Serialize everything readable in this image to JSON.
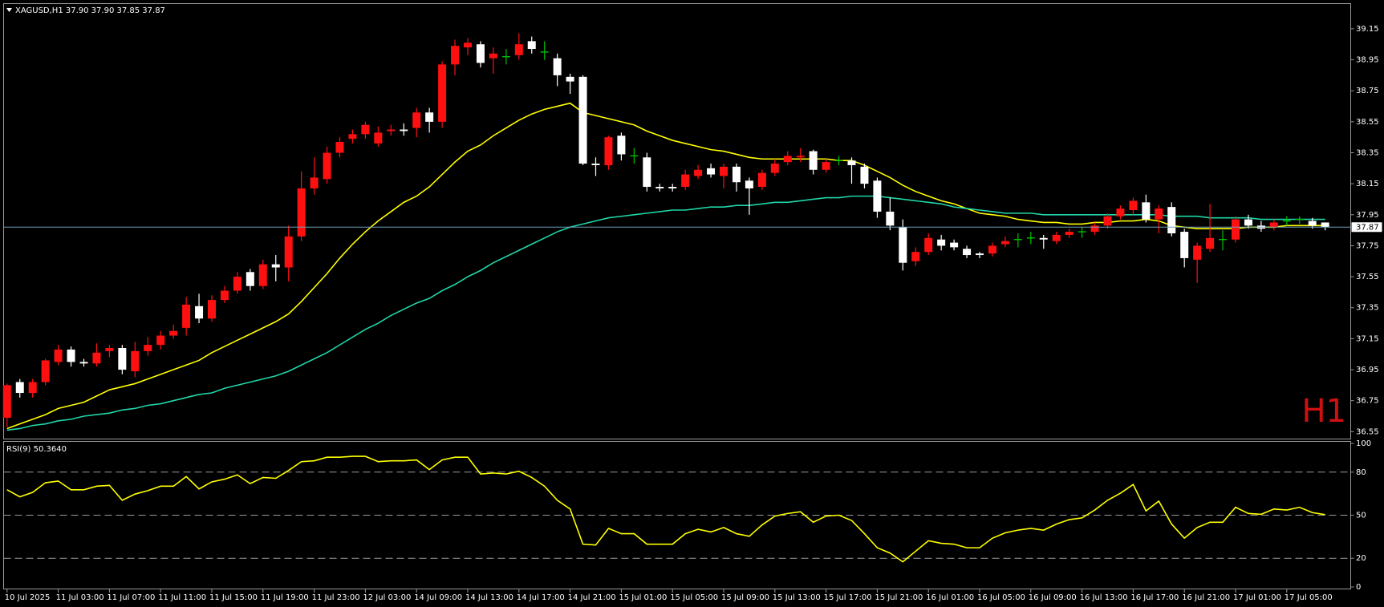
{
  "chart_data": [
    {
      "type": "candlestick",
      "title": "XAGUSD,H1  37.90 37.90 37.85 37.87",
      "watermark": "H1",
      "categories": [
        "10 Jul 2025",
        null,
        null,
        null,
        "11 Jul 03:00",
        null,
        null,
        null,
        "11 Jul 07:00",
        null,
        null,
        null,
        "11 Jul 11:00",
        null,
        null,
        null,
        "11 Jul 15:00",
        null,
        null,
        null,
        "11 Jul 19:00",
        null,
        null,
        null,
        "11 Jul 23:00",
        null,
        null,
        null,
        "12 Jul 03:00",
        null,
        null,
        null,
        "14 Jul 09:00",
        null,
        null,
        null,
        "14 Jul 13:00",
        null,
        null,
        null,
        "14 Jul 17:00",
        null,
        null,
        null,
        "14 Jul 21:00",
        null,
        null,
        null,
        "15 Jul 01:00",
        null,
        null,
        null,
        "15 Jul 05:00",
        null,
        null,
        null,
        "15 Jul 09:00",
        null,
        null,
        null,
        "15 Jul 13:00",
        null,
        null,
        null,
        "15 Jul 17:00",
        null,
        null,
        null,
        "15 Jul 21:00",
        null,
        null,
        null,
        "16 Jul 01:00",
        null,
        null,
        null,
        "16 Jul 05:00",
        null,
        null,
        null,
        "16 Jul 09:00",
        null,
        null,
        null,
        "16 Jul 13:00",
        null,
        null,
        null,
        "16 Jul 17:00",
        null,
        null,
        null,
        "16 Jul 21:00",
        null,
        null,
        null,
        "17 Jul 01:00",
        null,
        null,
        null,
        "17 Jul 05:00",
        null,
        null,
        null
      ],
      "open": [
        36.64,
        36.87,
        36.8,
        36.87,
        37.0,
        37.08,
        37.0,
        36.99,
        37.07,
        37.09,
        36.94,
        37.07,
        37.11,
        37.17,
        37.22,
        37.36,
        37.28,
        37.4,
        37.46,
        37.58,
        37.49,
        37.63,
        37.61,
        37.81,
        38.12,
        38.18,
        38.35,
        38.44,
        38.47,
        38.41,
        38.49,
        38.5,
        38.51,
        38.61,
        38.55,
        38.92,
        39.03,
        39.05,
        38.96,
        38.97,
        38.98,
        39.07,
        39.0,
        38.96,
        38.84,
        38.84,
        38.28,
        38.27,
        38.46,
        38.33,
        38.32,
        38.13,
        38.13,
        38.13,
        38.2,
        38.25,
        38.2,
        38.26,
        38.17,
        38.13,
        38.22,
        38.29,
        38.32,
        38.36,
        38.24,
        38.3,
        38.3,
        38.26,
        38.17,
        37.97,
        37.87,
        37.65,
        37.71,
        37.79,
        37.77,
        37.73,
        37.7,
        37.7,
        37.76,
        37.79,
        37.8,
        37.8,
        37.78,
        37.82,
        37.84,
        37.84,
        37.88,
        37.94,
        37.98,
        38.03,
        37.92,
        38.0,
        37.84,
        37.66,
        37.73,
        37.79,
        37.79,
        37.92,
        37.88,
        37.87,
        37.91,
        37.92,
        37.91,
        37.9
      ],
      "high": [
        36.86,
        36.89,
        36.89,
        37.02,
        37.11,
        37.1,
        37.02,
        37.12,
        37.11,
        37.11,
        37.13,
        37.16,
        37.2,
        37.24,
        37.42,
        37.44,
        37.43,
        37.49,
        37.58,
        37.6,
        37.66,
        37.69,
        37.88,
        38.23,
        38.32,
        38.39,
        38.45,
        38.5,
        38.55,
        38.52,
        38.53,
        38.54,
        38.64,
        38.64,
        38.94,
        39.08,
        39.09,
        39.07,
        39.03,
        39.02,
        39.12,
        39.1,
        39.07,
        38.99,
        38.86,
        38.85,
        38.32,
        38.46,
        38.48,
        38.38,
        38.35,
        38.15,
        38.15,
        38.24,
        38.27,
        38.28,
        38.28,
        38.28,
        38.19,
        38.24,
        38.31,
        38.36,
        38.38,
        38.37,
        38.31,
        38.33,
        38.32,
        38.28,
        38.19,
        38.06,
        37.92,
        37.74,
        37.83,
        37.82,
        37.79,
        37.75,
        37.71,
        37.77,
        37.81,
        37.83,
        37.84,
        37.82,
        37.84,
        37.86,
        37.87,
        37.9,
        37.96,
        38.01,
        38.06,
        38.08,
        38.01,
        38.03,
        37.86,
        37.77,
        38.02,
        37.85,
        37.94,
        37.95,
        37.91,
        37.92,
        37.94,
        37.94,
        37.93,
        37.9
      ],
      "low": [
        36.58,
        36.77,
        36.77,
        36.85,
        36.98,
        36.97,
        36.97,
        36.97,
        37.03,
        36.92,
        36.9,
        37.04,
        37.08,
        37.15,
        37.17,
        37.25,
        37.26,
        37.38,
        37.44,
        37.46,
        37.47,
        37.52,
        37.52,
        37.78,
        38.08,
        38.15,
        38.32,
        38.41,
        38.44,
        38.39,
        38.46,
        38.46,
        38.45,
        38.48,
        38.51,
        38.85,
        38.98,
        38.9,
        38.86,
        38.92,
        38.95,
        38.99,
        38.95,
        38.78,
        38.73,
        38.27,
        38.2,
        38.24,
        38.3,
        38.28,
        38.1,
        38.1,
        38.1,
        38.11,
        38.18,
        38.19,
        38.12,
        38.1,
        37.95,
        38.11,
        38.2,
        38.27,
        38.29,
        38.21,
        38.22,
        38.27,
        38.15,
        38.12,
        37.93,
        37.85,
        37.59,
        37.62,
        37.69,
        37.72,
        37.72,
        37.67,
        37.67,
        37.68,
        37.74,
        37.74,
        37.76,
        37.73,
        37.76,
        37.8,
        37.8,
        37.82,
        37.86,
        37.92,
        37.95,
        37.9,
        37.83,
        37.81,
        37.61,
        37.51,
        37.71,
        37.72,
        37.77,
        37.86,
        37.84,
        37.85,
        37.88,
        37.89,
        37.86,
        37.85
      ],
      "close": [
        36.85,
        36.8,
        36.87,
        37.01,
        37.08,
        37.0,
        36.99,
        37.06,
        37.09,
        36.95,
        37.07,
        37.11,
        37.17,
        37.2,
        37.37,
        37.28,
        37.4,
        37.46,
        37.55,
        37.49,
        37.63,
        37.61,
        37.81,
        38.12,
        38.19,
        38.35,
        38.42,
        38.47,
        38.53,
        38.48,
        38.5,
        38.49,
        38.61,
        38.55,
        38.92,
        39.04,
        39.06,
        38.93,
        38.99,
        38.97,
        39.05,
        39.02,
        39.0,
        38.85,
        38.81,
        38.28,
        38.27,
        38.45,
        38.34,
        38.33,
        38.13,
        38.12,
        38.12,
        38.21,
        38.24,
        38.21,
        38.26,
        38.16,
        38.12,
        38.22,
        38.28,
        38.33,
        38.33,
        38.24,
        38.29,
        38.3,
        38.27,
        38.15,
        37.97,
        37.88,
        37.64,
        37.71,
        37.8,
        37.75,
        37.74,
        37.69,
        37.69,
        37.75,
        37.78,
        37.79,
        37.8,
        37.79,
        37.82,
        37.84,
        37.84,
        37.88,
        37.94,
        37.99,
        38.04,
        37.92,
        37.99,
        37.83,
        37.67,
        37.75,
        37.8,
        37.79,
        37.92,
        37.88,
        37.86,
        37.9,
        37.91,
        37.92,
        37.88,
        37.87
      ],
      "up_color": "#ff1010",
      "down_color": "#ffffff",
      "doji_color": "#00c000",
      "moving_averages": [
        {
          "color": "#ffff00",
          "values": [
            36.57,
            36.6,
            36.63,
            36.66,
            36.7,
            36.72,
            36.74,
            36.78,
            36.82,
            36.84,
            36.86,
            36.89,
            36.92,
            36.95,
            36.98,
            37.01,
            37.06,
            37.1,
            37.14,
            37.18,
            37.22,
            37.26,
            37.31,
            37.39,
            37.48,
            37.57,
            37.67,
            37.76,
            37.84,
            37.91,
            37.97,
            38.03,
            38.07,
            38.13,
            38.21,
            38.29,
            38.36,
            38.4,
            38.46,
            38.51,
            38.56,
            38.6,
            38.63,
            38.65,
            38.67,
            38.61,
            38.59,
            38.57,
            38.55,
            38.53,
            38.49,
            38.46,
            38.43,
            38.41,
            38.39,
            38.37,
            38.36,
            38.34,
            38.32,
            38.31,
            38.31,
            38.31,
            38.31,
            38.31,
            38.31,
            38.3,
            38.3,
            38.27,
            38.23,
            38.19,
            38.14,
            38.1,
            38.07,
            38.04,
            38.02,
            37.99,
            37.96,
            37.95,
            37.94,
            37.92,
            37.91,
            37.9,
            37.9,
            37.89,
            37.89,
            37.9,
            37.9,
            37.91,
            37.91,
            37.92,
            37.91,
            37.88,
            37.87,
            37.86,
            37.86,
            37.86,
            37.86,
            37.87,
            37.87,
            37.87,
            37.88,
            37.88,
            37.88,
            37.88
          ]
        },
        {
          "color": "#1fd6a8",
          "values": [
            36.56,
            36.57,
            36.59,
            36.6,
            36.62,
            36.63,
            36.65,
            36.66,
            36.67,
            36.69,
            36.7,
            36.72,
            36.73,
            36.75,
            36.77,
            36.79,
            36.8,
            36.83,
            36.85,
            36.87,
            36.89,
            36.91,
            36.94,
            36.98,
            37.02,
            37.06,
            37.11,
            37.16,
            37.21,
            37.25,
            37.3,
            37.34,
            37.38,
            37.41,
            37.46,
            37.5,
            37.55,
            37.59,
            37.64,
            37.68,
            37.72,
            37.76,
            37.8,
            37.84,
            37.87,
            37.89,
            37.91,
            37.93,
            37.94,
            37.95,
            37.96,
            37.97,
            37.98,
            37.98,
            37.99,
            38.0,
            38.0,
            38.01,
            38.01,
            38.02,
            38.03,
            38.03,
            38.04,
            38.05,
            38.06,
            38.06,
            38.07,
            38.07,
            38.07,
            38.06,
            38.05,
            38.04,
            38.03,
            38.02,
            38.0,
            37.99,
            37.98,
            37.97,
            37.96,
            37.96,
            37.96,
            37.95,
            37.95,
            37.95,
            37.95,
            37.95,
            37.95,
            37.95,
            37.95,
            37.95,
            37.95,
            37.94,
            37.94,
            37.94,
            37.93,
            37.93,
            37.93,
            37.93,
            37.92,
            37.92,
            37.92,
            37.92,
            37.92,
            37.92
          ]
        }
      ],
      "last_price": 37.87,
      "last_price_color": "#6fa0b8",
      "ylim": [
        36.5,
        39.31
      ],
      "yticks": [
        39.15,
        38.95,
        38.75,
        38.55,
        38.35,
        38.15,
        37.95,
        37.75,
        37.55,
        37.35,
        37.15,
        36.95,
        36.75,
        36.55
      ]
    },
    {
      "type": "line",
      "title": "RSI(9) 50.3640",
      "color": "#ffff00",
      "values": [
        67.7,
        62.8,
        65.9,
        72.6,
        73.8,
        67.7,
        67.7,
        70.2,
        70.8,
        60.4,
        64.7,
        67.1,
        70.2,
        70.2,
        76.9,
        68.3,
        73.2,
        75.1,
        78.1,
        72.0,
        76.3,
        75.7,
        81.2,
        87.3,
        87.9,
        90.4,
        90.4,
        91.0,
        91.0,
        87.3,
        87.9,
        87.9,
        88.5,
        81.8,
        88.5,
        90.4,
        90.4,
        78.7,
        79.4,
        78.7,
        80.6,
        76.3,
        70.2,
        60.4,
        54.3,
        29.8,
        29.2,
        40.8,
        37.1,
        37.1,
        29.8,
        29.8,
        29.8,
        37.1,
        40.2,
        38.3,
        41.4,
        37.1,
        35.3,
        43.2,
        49.4,
        51.2,
        52.4,
        45.1,
        49.4,
        50.0,
        46.3,
        37.1,
        27.3,
        23.6,
        17.5,
        24.9,
        32.2,
        30.4,
        29.8,
        27.3,
        27.3,
        34.0,
        37.7,
        39.6,
        40.8,
        39.6,
        43.8,
        46.9,
        48.1,
        53.6,
        60.4,
        65.3,
        71.4,
        53.0,
        59.8,
        43.8,
        34.0,
        41.4,
        45.1,
        45.1,
        55.5,
        51.2,
        50.6,
        54.3,
        53.6,
        55.5,
        51.8,
        50.4
      ],
      "levels": [
        80,
        50,
        20
      ],
      "ylim": [
        0,
        100
      ],
      "yticks": [
        100,
        80,
        50,
        20,
        0
      ]
    }
  ]
}
